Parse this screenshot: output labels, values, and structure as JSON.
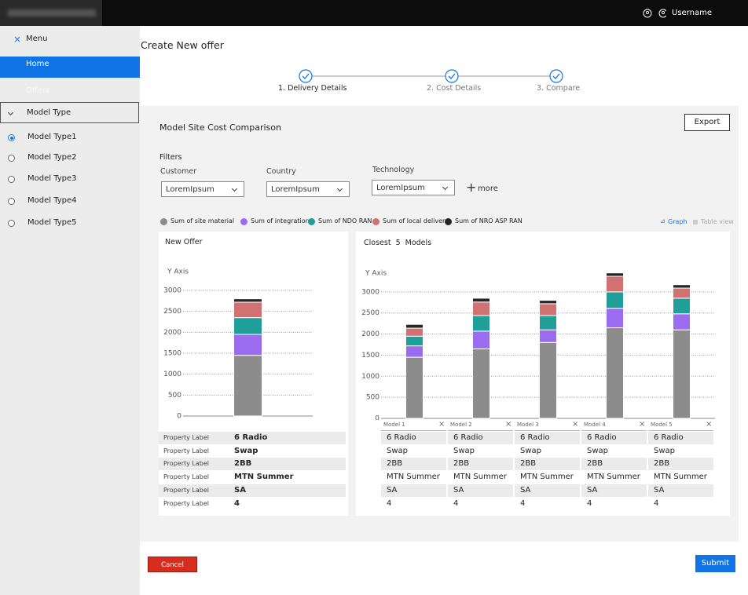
{
  "header": {
    "username": "Username"
  },
  "sidebar": {
    "menu": "Menu",
    "items": [
      "Home",
      "Offers"
    ],
    "section": "Model Type",
    "options": [
      "Model Type1",
      "Model Type2",
      "Model Type3",
      "Model Type4",
      "Model Type5"
    ]
  },
  "page": {
    "title": "Create New offer",
    "steps": [
      "1. Delivery Details",
      "2. Cost Details",
      "3. Compare"
    ]
  },
  "panel": {
    "title": "Model Site Cost Comparison",
    "export": "Export",
    "filters_title": "Filters",
    "filters": [
      {
        "label": "Customer",
        "value": "LoremIpsum"
      },
      {
        "label": "Country",
        "value": "LoremIpsum"
      },
      {
        "label": "Technology",
        "value": "LoremIpsum"
      }
    ],
    "more": "more",
    "views": [
      "Graph",
      "Table view"
    ]
  },
  "chart_data": [
    {
      "type": "bar",
      "stacked": true,
      "title": "New Offer",
      "y_label": "Y Axis",
      "categories": [
        null
      ],
      "series": [
        {
          "name": "Sum of site material",
          "color": "#8c8c8c",
          "values": [
            1450
          ]
        },
        {
          "name": "Sum of integration",
          "color": "#9b6cf0",
          "values": [
            500
          ]
        },
        {
          "name": "Sum of NDO RAN",
          "color": "#1f9e9a",
          "values": [
            400
          ]
        },
        {
          "name": "Sum of local delivery",
          "color": "#d07272",
          "values": [
            370
          ]
        },
        {
          "name": "Sum of NRO ASP RAN",
          "color": "#262626",
          "values": [
            80
          ]
        }
      ],
      "ylim": [
        0,
        3300
      ],
      "yticks": [
        0,
        500,
        1000,
        1500,
        2000,
        2500,
        3000
      ],
      "grid": true
    },
    {
      "type": "bar",
      "stacked": true,
      "title": "Closest 5 Models",
      "y_label": "Y Axis",
      "categories": [
        "Model 1",
        "Model 2",
        "Model 3",
        "Model 4",
        "Model 5"
      ],
      "series": [
        {
          "color": "#8c8c8c",
          "values": [
            1450,
            1650,
            1800,
            2150,
            2100
          ]
        },
        {
          "color": "#9b6cf0",
          "values": [
            270,
            420,
            300,
            460,
            380
          ]
        },
        {
          "color": "#1f9e9a",
          "values": [
            230,
            370,
            340,
            390,
            370
          ]
        },
        {
          "color": "#d07272",
          "values": [
            190,
            320,
            280,
            370,
            240
          ]
        },
        {
          "color": "#262626",
          "values": [
            90,
            90,
            80,
            80,
            80
          ]
        }
      ],
      "ylim": [
        0,
        3500
      ],
      "yticks": [
        0,
        500,
        1000,
        1500,
        2000,
        2500,
        3000
      ],
      "grid": true
    }
  ],
  "tables": {
    "new_offer": {
      "rows": [
        [
          "Property Label",
          "6 Radio"
        ],
        [
          "Property Label",
          "Swap"
        ],
        [
          "Property Label",
          "2BB"
        ],
        [
          "Property Label",
          "MTN Summer"
        ],
        [
          "Property Label",
          "SA"
        ],
        [
          "Property Label",
          "4"
        ]
      ]
    },
    "models": {
      "rows": [
        [
          "6 Radio",
          "6 Radio",
          "6 Radio",
          "6 Radio",
          "6 Radio"
        ],
        [
          "Swap",
          "Swap",
          "Swap",
          "Swap",
          "Swap"
        ],
        [
          "2BB",
          "2BB",
          "2BB",
          "2BB",
          "2BB"
        ],
        [
          "MTN Summer",
          "MTN Summer",
          "MTN Summer",
          "MTN Summer",
          "MTN Summer"
        ],
        [
          "SA",
          "SA",
          "SA",
          "SA",
          "SA"
        ],
        [
          "4",
          "4",
          "4",
          "4",
          "4"
        ]
      ]
    }
  },
  "buttons": {
    "cancel": "Cancel",
    "submit": "Submit"
  }
}
